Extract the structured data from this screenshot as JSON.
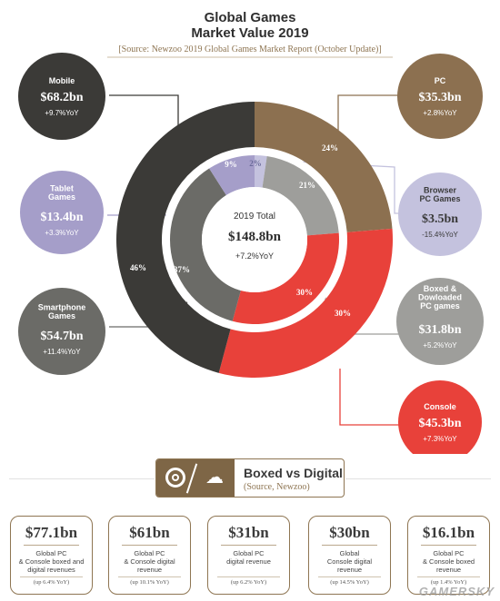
{
  "header": {
    "title_line1": "Global Games",
    "title_line2": "Market Value 2019",
    "source": "[Source: Newzoo 2019 Global Games Market Report (October Update)]"
  },
  "center": {
    "label": "2019 Total",
    "value": "$148.8bn",
    "yoy": "+7.2%YoY"
  },
  "colors": {
    "mobile": "#3b3a37",
    "tablet": "#a59ec9",
    "smartphone": "#6b6b67",
    "pc": "#8c7050",
    "browser": "#c4c2de",
    "boxed_downloaded": "#9e9e9b",
    "console": "#e8413a",
    "brown": "#8e7552"
  },
  "chart_data": {
    "type": "pie",
    "title": "Global Games Market Value 2019",
    "unit": "$bn",
    "total": 148.8,
    "outer_ring": [
      {
        "name": "Mobile",
        "value": 68.2,
        "share": 46,
        "yoy": "+9.7%YoY",
        "color": "#3b3a37"
      },
      {
        "name": "PC",
        "value": 35.3,
        "share": 24,
        "yoy": "+2.8%YoY",
        "color": "#8c7050"
      },
      {
        "name": "Console",
        "value": 45.3,
        "share": 30,
        "yoy": "+7.3%YoY",
        "color": "#e8413a"
      }
    ],
    "inner_ring": [
      {
        "name": "Tablet Games",
        "value": 13.4,
        "share": 9,
        "yoy": "+3.3%YoY",
        "color": "#a59ec9"
      },
      {
        "name": "Browser PC Games",
        "value": 3.5,
        "share": 2,
        "yoy": "-15.4%YoY",
        "color": "#c4c2de"
      },
      {
        "name": "Boxed & Dowloaded PC games",
        "value": 31.8,
        "share": 21,
        "yoy": "+5.2%YoY",
        "color": "#9e9e9b"
      },
      {
        "name": "Console",
        "value": 45.3,
        "share": 30,
        "yoy": "+7.3%YoY",
        "color": "#e8413a"
      },
      {
        "name": "Smartphone Games",
        "value": 54.7,
        "share": 37,
        "yoy": "+11.4%YoY",
        "color": "#6b6b67"
      }
    ]
  },
  "bubbles": [
    {
      "key": "mobile",
      "title": "Mobile",
      "value": "$68.2bn",
      "yoy": "+9.7%YoY"
    },
    {
      "key": "tablet",
      "title": "Tablet\nGames",
      "value": "$13.4bn",
      "yoy": "+3.3%YoY"
    },
    {
      "key": "smartphone",
      "title": "Smartphone\nGames",
      "value": "$54.7bn",
      "yoy": "+11.4%YoY"
    },
    {
      "key": "pc",
      "title": "PC",
      "value": "$35.3bn",
      "yoy": "+2.8%YoY"
    },
    {
      "key": "browser",
      "title": "Browser\nPC Games",
      "value": "$3.5bn",
      "yoy": "-15.4%YoY"
    },
    {
      "key": "boxed",
      "title": "Boxed &\nDowloaded\nPC games",
      "value": "$31.8bn",
      "yoy": "+5.2%YoY"
    },
    {
      "key": "console",
      "title": "Console",
      "value": "$45.3bn",
      "yoy": "+7.3%YoY"
    }
  ],
  "boxed_vs_digital": {
    "title": "Boxed vs Digital",
    "source": "(Source, Newzoo)"
  },
  "cards": [
    {
      "value": "$77.1bn",
      "desc": "Global PC\n& Console boxed and\ndigital revenues",
      "foot": "(up 6.4% YoY)"
    },
    {
      "value": "$61bn",
      "desc": "Global PC\n& Console digital\nrevenue",
      "foot": "(up 10.1% YoY)"
    },
    {
      "value": "$31bn",
      "desc": "Global PC\ndigital revenue",
      "foot": "(up 6.2% YoY)"
    },
    {
      "value": "$30bn",
      "desc": "Global\nConsole digital\nrevenue",
      "foot": "(up 14.5% YoY)"
    },
    {
      "value": "$16.1bn",
      "desc": "Global PC\n& Console boxed\nrevenue",
      "foot": "(up 1.4% YoY)"
    }
  ],
  "watermark": "GAMERSKY"
}
